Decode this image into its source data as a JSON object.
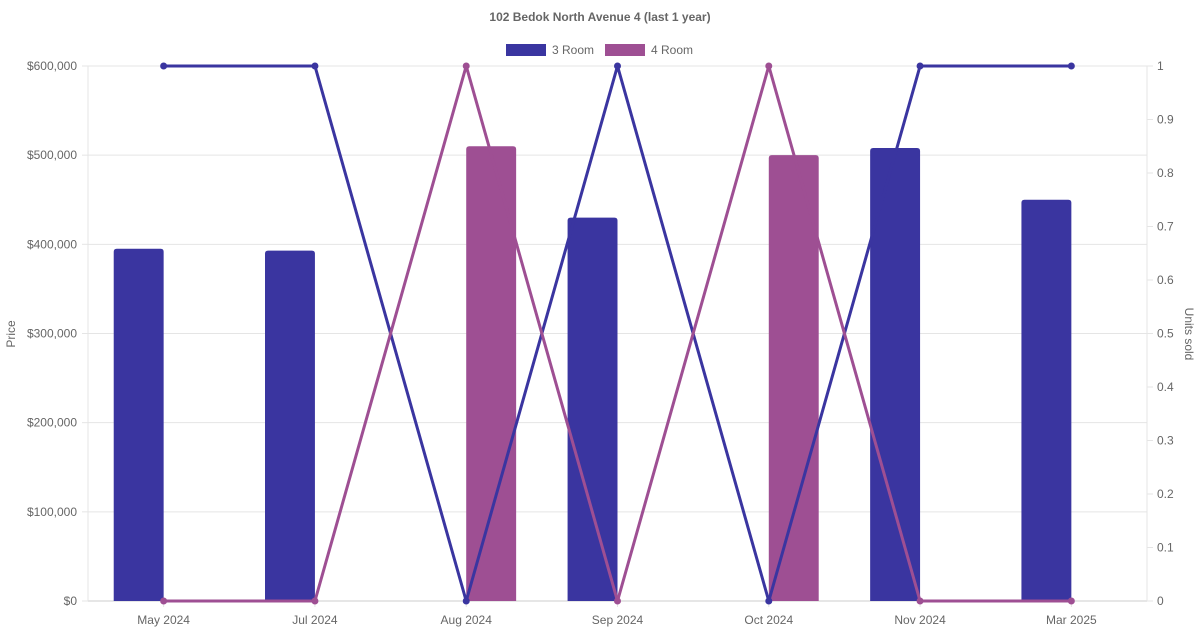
{
  "chart_data": {
    "type": "bar",
    "title": "102 Bedok North Avenue 4 (last 1 year)",
    "categories": [
      "May 2024",
      "Jul 2024",
      "Aug 2024",
      "Sep 2024",
      "Oct 2024",
      "Nov 2024",
      "Mar 2025"
    ],
    "ylabel": "Price",
    "y2label": "Units sold",
    "ylim": [
      0,
      600000
    ],
    "y2lim": [
      0,
      1
    ],
    "yticks": [
      "$0",
      "$100,000",
      "$200,000",
      "$300,000",
      "$400,000",
      "$500,000",
      "$600,000"
    ],
    "y2ticks": [
      "0",
      "0.1",
      "0.2",
      "0.3",
      "0.4",
      "0.5",
      "0.6",
      "0.7",
      "0.8",
      "0.9",
      "1"
    ],
    "legend_position": "top",
    "grid": true,
    "series": [
      {
        "name": "3 Room",
        "color": "#3a35a0",
        "price_values": [
          395000,
          393000,
          null,
          430000,
          null,
          508000,
          450000
        ],
        "units_sold": [
          1,
          1,
          0,
          1,
          0,
          1,
          1
        ]
      },
      {
        "name": "4 Room",
        "color": "#9e4f93",
        "price_values": [
          null,
          null,
          510000,
          null,
          500000,
          null,
          null
        ],
        "units_sold": [
          0,
          0,
          1,
          0,
          1,
          0,
          0
        ]
      }
    ]
  }
}
